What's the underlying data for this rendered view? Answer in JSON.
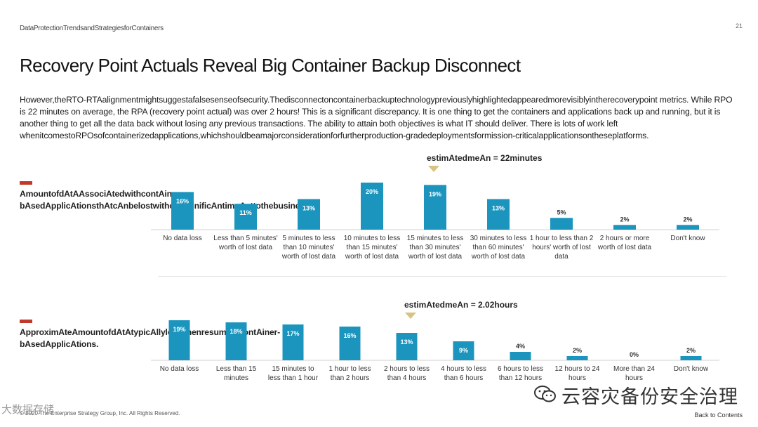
{
  "header": {
    "doc_title": "DataProtectionTrendsandStrategiesforContainers",
    "page_number": "21"
  },
  "title": "Recovery Point Actuals Reveal Big Container Backup Disconnect",
  "body_text": "However,theRTO-RTAalignmentmightsuggestafalsesenseofsecurity.Thedisconnectoncontainerbackuptechnologypreviouslyhighlightedappearedmorevisiblyintherecoverypoint metrics. While RPO is 22 minutes on average, the RPA (recovery point actual) was over 2 hours! This is a significant discrepancy. It is one thing to get the containers and applications back up and running, but it is another thing to get all the data back without losing any previous transactions. The ability to attain both objectives is what IT should deliver. There is lots of work left whenitcomestoRPOsofcontainerizedapplications,whichshouldbeamajorconsiderationforfurtherproduction-gradedeploymentsformission-criticalapplicationsontheseplatforms.",
  "panel1": {
    "label": "AmountofdAtAAssociAtedwithcontAiner-bAsedApplicAtionsthAtcAnbelostwithoutsignificAntimpActtothebusiness.",
    "mean": "estimAtedmeAn = 22minutes"
  },
  "panel2": {
    "label": "ApproximAteAmountofdAtAtypicAllylostwhenresumingcontAiner-bAsedApplicAtions.",
    "mean": "estimAtedmeAn = 2.02hours"
  },
  "chart_data": [
    {
      "type": "bar",
      "title": "Amount of data associated with container-based applications that can be lost without significant impact to the business.",
      "categories": [
        "No data loss",
        "Less than 5 minutes' worth of lost data",
        "5 minutes to less than 10 minutes' worth of lost data",
        "10 minutes to less than 15 minutes' worth of lost data",
        "15 minutes to less than 30 minutes' worth of lost data",
        "30 minutes to less than 60 minutes' worth of lost data",
        "1 hour to less than 2 hours' worth of lost data",
        "2 hours or more worth of lost data",
        "Don't know"
      ],
      "category_lines": [
        [
          "No data loss"
        ],
        [
          "Less than 5 minutes'",
          "worth of lost data"
        ],
        [
          "5 minutes to less",
          "than 10 minutes'",
          "worth of lost data"
        ],
        [
          "10 minutes to less",
          "than 15 minutes'",
          "worth of lost data"
        ],
        [
          "15 minutes to less",
          "than 30 minutes'",
          "worth of lost data"
        ],
        [
          "30 minutes to less",
          "than 60 minutes'",
          "worth of lost data"
        ],
        [
          "1 hour to less than 2",
          "hours' worth of lost",
          "data"
        ],
        [
          "2 hours or more",
          "worth of lost data"
        ],
        [
          "Don't know"
        ]
      ],
      "values": [
        16,
        11,
        13,
        20,
        19,
        13,
        5,
        2,
        2
      ],
      "value_labels": [
        "16%",
        "11%",
        "13%",
        "20%",
        "19%",
        "13%",
        "5%",
        "2%",
        "2%"
      ],
      "unit": "%",
      "estimated_mean": "22 minutes",
      "mean_marker_category_index": 4,
      "color": "#1b95be"
    },
    {
      "type": "bar",
      "title": "Approximate amount of data typically lost when resuming container-based applications.",
      "categories": [
        "No data loss",
        "Less than 15 minutes",
        "15 minutes to less than 1 hour",
        "1 hour to less than 2 hours",
        "2 hours to less than 4 hours",
        "4 hours to less than 6 hours",
        "6 hours to less than 12 hours",
        "12 hours to 24 hours",
        "More than 24 hours",
        "Don't know"
      ],
      "category_lines": [
        [
          "No data loss"
        ],
        [
          "Less than 15",
          "minutes"
        ],
        [
          "15 minutes to",
          "less than 1 hour"
        ],
        [
          "1 hour to less",
          "than 2 hours"
        ],
        [
          "2 hours to less",
          "than 4 hours"
        ],
        [
          "4 hours to less",
          "than 6 hours"
        ],
        [
          "6 hours to less",
          "than 12 hours"
        ],
        [
          "12 hours to 24",
          "hours"
        ],
        [
          "More than 24",
          "hours"
        ],
        [
          "Don't know"
        ]
      ],
      "values": [
        19,
        18,
        17,
        16,
        13,
        9,
        4,
        2,
        0,
        2
      ],
      "value_labels": [
        "19%",
        "18%",
        "17%",
        "16%",
        "13%",
        "9%",
        "4%",
        "2%",
        "0%",
        "2%"
      ],
      "unit": "%",
      "estimated_mean": "2.02 hours",
      "mean_marker_category_index": 4,
      "color": "#1b95be"
    }
  ],
  "footer": {
    "copyright": "© 2020 The Enterprise Strategy Group, Inc. All Rights Reserved.",
    "back_link": "Back to Contents"
  },
  "watermarks": {
    "left": "大数据存储",
    "right": "云容灾备份安全治理"
  },
  "colors": {
    "bar": "#1b95be",
    "accent_red": "#c0392b",
    "mean_marker": "#d8c383"
  }
}
